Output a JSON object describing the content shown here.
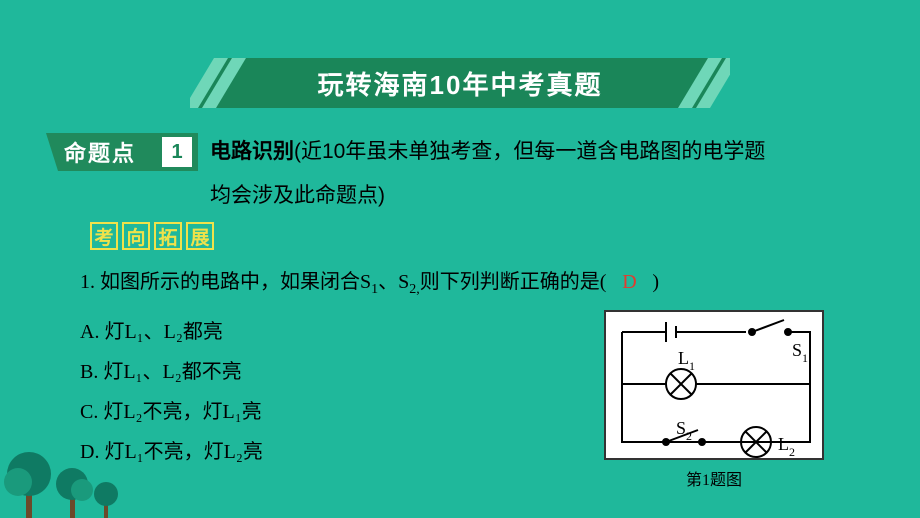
{
  "colors": {
    "bg": "#1fb89b",
    "banner_dark": "#1a8659",
    "banner_green": "#208a5c",
    "banner_light": "#6fd7b8",
    "accent_yellow": "#f0e24a",
    "white": "#ffffff",
    "text_black": "#000000",
    "answer_red": "#e23b2e",
    "tree_dark": "#0f7a63",
    "tree_mid": "#1a9a7c",
    "tree_trunk": "#6b4a2a",
    "num_color": "#1a8659"
  },
  "banner": {
    "title": "玩转海南10年中考真题"
  },
  "topic": {
    "badge_label": "命题点",
    "badge_number": "1",
    "title_bold": "电路识别",
    "title_rest": "(近10年虽未单独考查，但每一道含电路图的电学题",
    "title_line2": "均会涉及此命题点)"
  },
  "direction": {
    "chars": [
      "考",
      "向",
      "拓",
      "展"
    ]
  },
  "question": {
    "stem_a": "1. 如图所示的电路中，如果闭合S",
    "stem_b": "、S",
    "stem_c": "则下列判断正确的是(",
    "stem_d": ")",
    "answer": "D",
    "options": {
      "A": "A. 灯L₁、L₂都亮",
      "B": "B. 灯L₁、L₂都不亮",
      "C": "C. 灯L₂不亮，灯L₁亮",
      "D": "D. 灯L₁不亮，灯L₂亮"
    },
    "s1": "1",
    "s2": "2,"
  },
  "figure": {
    "caption": "第1题图",
    "L1": "L",
    "L1s": "1",
    "L2": "L",
    "L2s": "2",
    "S1": "S",
    "S1s": "1",
    "S2": "S",
    "S2s": "2"
  }
}
